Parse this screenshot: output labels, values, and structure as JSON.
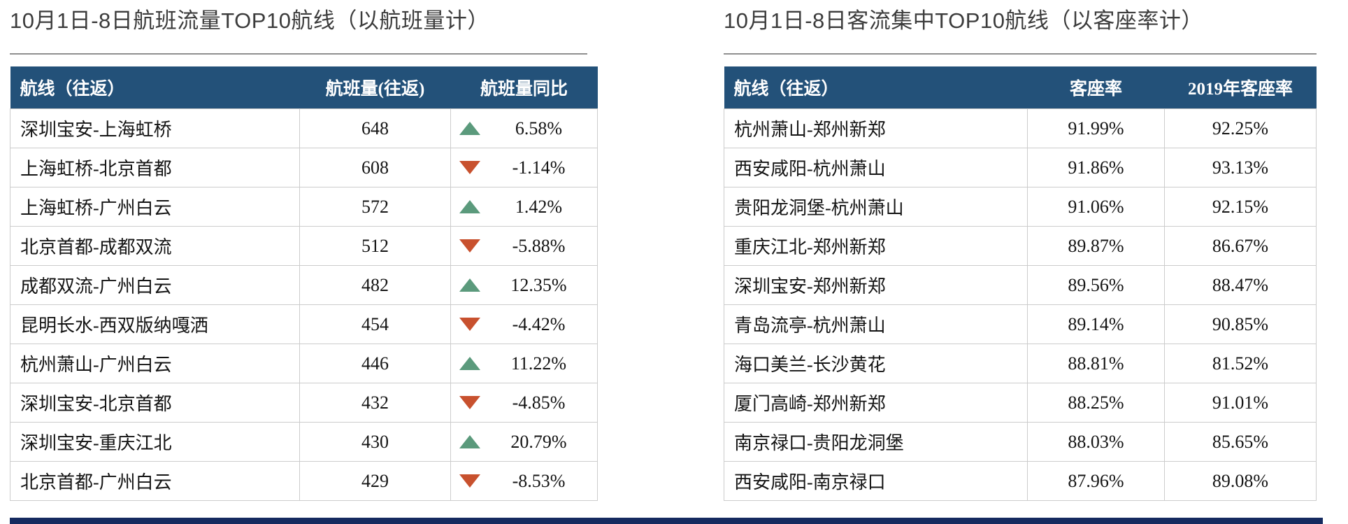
{
  "colors": {
    "header_bg": "#235179",
    "up_green": "#5b9a7c",
    "down_red": "#c8512e",
    "bottom_bar_navy": "#152a5f",
    "row_border": "#cccccc",
    "title_text": "#3c3c3c"
  },
  "chart_data": [
    {
      "type": "table",
      "title": "10月1日-8日航班流量TOP10航线（以航班量计）",
      "columns": [
        "航线（往返）",
        "航班量(往返)",
        "航班量同比"
      ],
      "rows": [
        {
          "route": "深圳宝安-上海虹桥",
          "flights": 648,
          "trend": "up",
          "yoy": "6.58%"
        },
        {
          "route": "上海虹桥-北京首都",
          "flights": 608,
          "trend": "down",
          "yoy": "-1.14%"
        },
        {
          "route": "上海虹桥-广州白云",
          "flights": 572,
          "trend": "up",
          "yoy": "1.42%"
        },
        {
          "route": "北京首都-成都双流",
          "flights": 512,
          "trend": "down",
          "yoy": "-5.88%"
        },
        {
          "route": "成都双流-广州白云",
          "flights": 482,
          "trend": "up",
          "yoy": "12.35%"
        },
        {
          "route": "昆明长水-西双版纳嘎洒",
          "flights": 454,
          "trend": "down",
          "yoy": "-4.42%"
        },
        {
          "route": "杭州萧山-广州白云",
          "flights": 446,
          "trend": "up",
          "yoy": "11.22%"
        },
        {
          "route": "深圳宝安-北京首都",
          "flights": 432,
          "trend": "down",
          "yoy": "-4.85%"
        },
        {
          "route": "深圳宝安-重庆江北",
          "flights": 430,
          "trend": "up",
          "yoy": "20.79%"
        },
        {
          "route": "北京首都-广州白云",
          "flights": 429,
          "trend": "down",
          "yoy": "-8.53%"
        }
      ]
    },
    {
      "type": "table",
      "title": "10月1日-8日客流集中TOP10航线（以客座率计）",
      "columns": [
        "航线（往返）",
        "客座率",
        "2019年客座率"
      ],
      "rows": [
        {
          "route": "杭州萧山-郑州新郑",
          "load_factor": "91.99%",
          "load_factor_2019": "92.25%"
        },
        {
          "route": "西安咸阳-杭州萧山",
          "load_factor": "91.86%",
          "load_factor_2019": "93.13%"
        },
        {
          "route": "贵阳龙洞堡-杭州萧山",
          "load_factor": "91.06%",
          "load_factor_2019": "92.15%"
        },
        {
          "route": "重庆江北-郑州新郑",
          "load_factor": "89.87%",
          "load_factor_2019": "86.67%"
        },
        {
          "route": "深圳宝安-郑州新郑",
          "load_factor": "89.56%",
          "load_factor_2019": "88.47%"
        },
        {
          "route": "青岛流亭-杭州萧山",
          "load_factor": "89.14%",
          "load_factor_2019": "90.85%"
        },
        {
          "route": "海口美兰-长沙黄花",
          "load_factor": "88.81%",
          "load_factor_2019": "81.52%"
        },
        {
          "route": "厦门高崎-郑州新郑",
          "load_factor": "88.25%",
          "load_factor_2019": "91.01%"
        },
        {
          "route": "南京禄口-贵阳龙洞堡",
          "load_factor": "88.03%",
          "load_factor_2019": "85.65%"
        },
        {
          "route": "西安咸阳-南京禄口",
          "load_factor": "87.96%",
          "load_factor_2019": "89.08%"
        }
      ]
    }
  ]
}
